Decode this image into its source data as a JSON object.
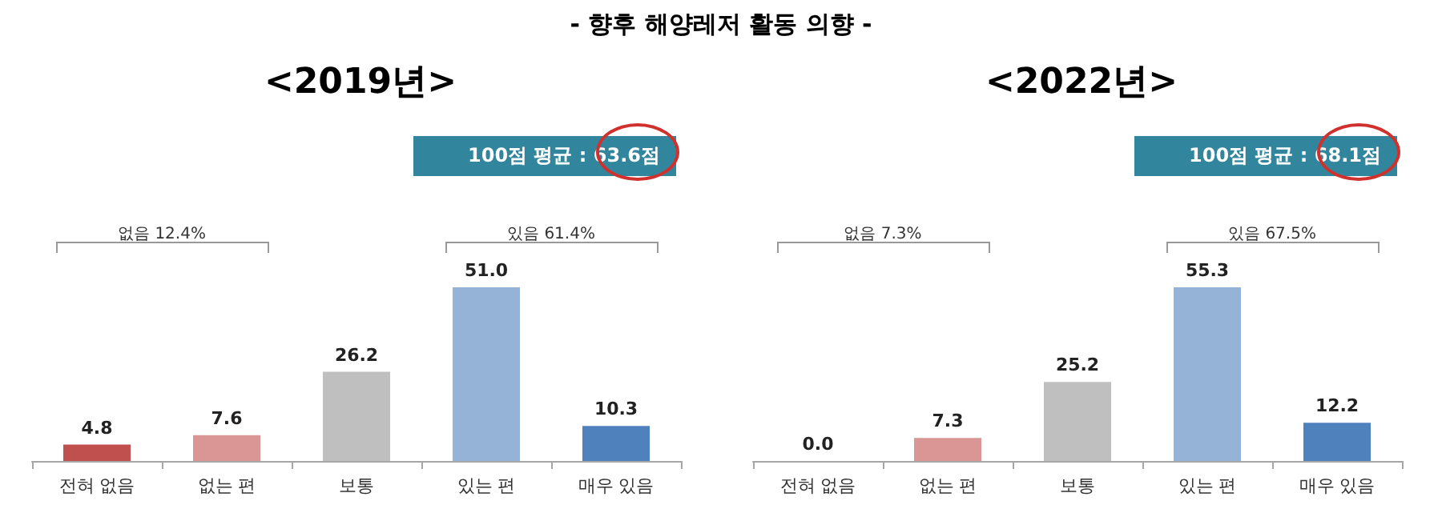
{
  "chart_data": [
    {
      "type": "other",
      "title": "- 향후 해양레저 활동 의향 -"
    },
    {
      "type": "bar",
      "title": "<2019년>",
      "categories": [
        "전혀 없음",
        "없는 편",
        "보통",
        "있는 편",
        "매우 있음"
      ],
      "values": [
        4.8,
        7.6,
        26.2,
        51.0,
        10.3
      ],
      "value_labels": [
        "4.8",
        "7.6",
        "26.2",
        "51.0",
        "10.3"
      ],
      "colors": [
        "#c0504d",
        "#d99694",
        "#bfbfbf",
        "#95b3d7",
        "#4f81bd"
      ],
      "annotations": [
        "100점 평균 : 63.6점",
        "없음 12.4%",
        "있음 61.4%"
      ]
    },
    {
      "type": "bar",
      "title": "<2022년>",
      "categories": [
        "전혀 없음",
        "없는 편",
        "보통",
        "있는 편",
        "매우 있음"
      ],
      "values": [
        0.0,
        7.3,
        25.2,
        55.3,
        12.2
      ],
      "value_labels": [
        "0.0",
        "7.3",
        "25.2",
        "55.3",
        "12.2"
      ],
      "colors": [
        "#c0504d",
        "#d99694",
        "#bfbfbf",
        "#95b3d7",
        "#4f81bd"
      ],
      "annotations": [
        "100점 평균 : 68.1점",
        "없음 7.3%",
        "있음 67.5%"
      ]
    }
  ]
}
